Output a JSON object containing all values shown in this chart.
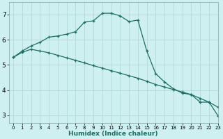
{
  "xlabel": "Humidex (Indice chaleur)",
  "background_color": "#cff0f0",
  "grid_color": "#b0d8d8",
  "line_color": "#1a6e65",
  "xlim": [
    -0.5,
    23
  ],
  "ylim": [
    2.7,
    7.5
  ],
  "xticks": [
    0,
    1,
    2,
    3,
    4,
    5,
    6,
    7,
    8,
    9,
    10,
    11,
    12,
    13,
    14,
    15,
    16,
    17,
    18,
    19,
    20,
    21,
    22,
    23
  ],
  "yticks": [
    3,
    4,
    5,
    6,
    7
  ],
  "line1_x": [
    0,
    1,
    2,
    3,
    4,
    5,
    6,
    7,
    8,
    9,
    10,
    11,
    12,
    13,
    14,
    15,
    16,
    17,
    18,
    19,
    20,
    21,
    22,
    23
  ],
  "line1_y": [
    5.3,
    5.55,
    5.75,
    5.9,
    6.1,
    6.15,
    6.22,
    6.32,
    6.7,
    6.75,
    7.05,
    7.05,
    6.95,
    6.72,
    6.78,
    5.55,
    4.65,
    4.32,
    4.05,
    3.88,
    3.82,
    3.52,
    3.52,
    2.98
  ],
  "line2_x": [
    0,
    1,
    2,
    3,
    4,
    5,
    6,
    7,
    8,
    9,
    10,
    11,
    12,
    13,
    14,
    15,
    16,
    17,
    18,
    19,
    20,
    21,
    22,
    23
  ],
  "line2_y": [
    5.3,
    5.5,
    5.62,
    5.55,
    5.48,
    5.38,
    5.28,
    5.18,
    5.08,
    4.97,
    4.87,
    4.77,
    4.67,
    4.57,
    4.47,
    4.35,
    4.22,
    4.12,
    4.02,
    3.92,
    3.82,
    3.67,
    3.52,
    3.32
  ]
}
